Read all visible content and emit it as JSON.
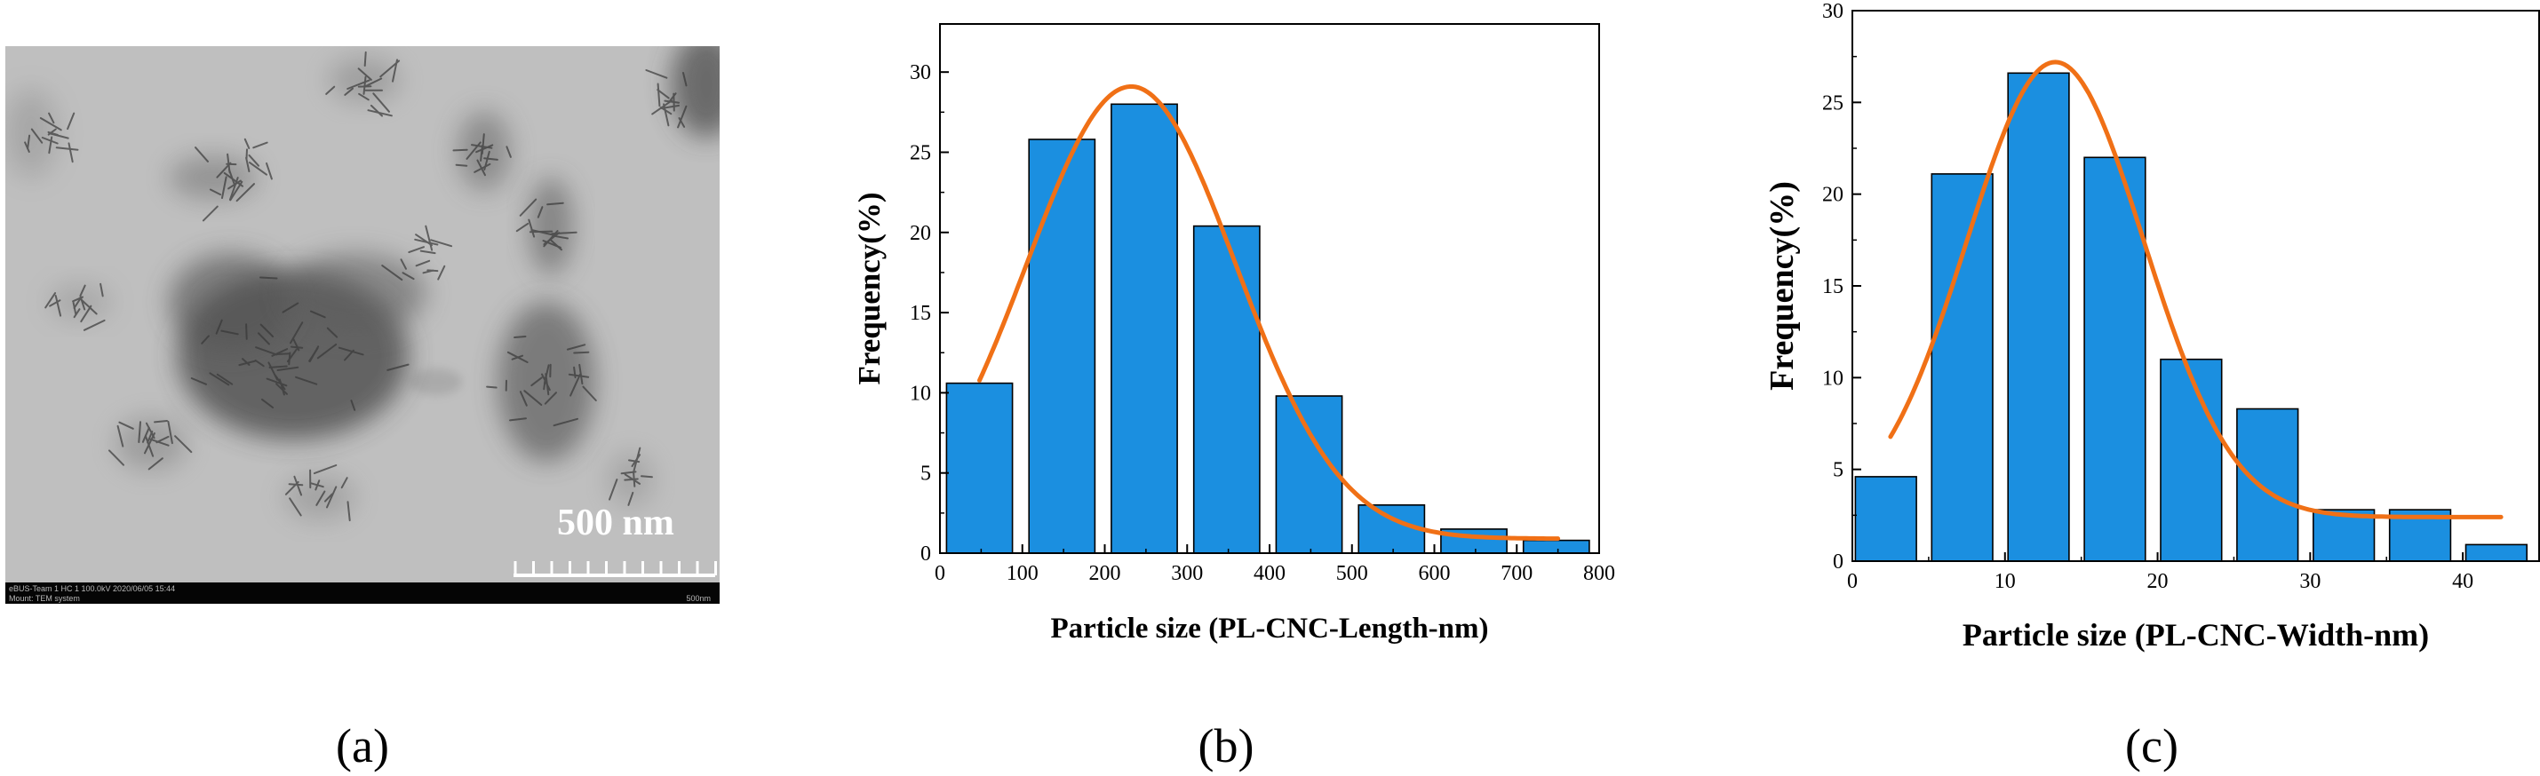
{
  "panels": {
    "a": "(a)",
    "b": "(b)",
    "c": "(c)"
  },
  "micrograph": {
    "scale_label": "500 nm",
    "footer_left_line1": "eBUS-Team 1 HC 1 100.0kV 2020/06/05 15:44",
    "footer_left_line2": "Mount: TEM system",
    "footer_right": "500nm"
  },
  "colors": {
    "bar": "#1b8fe0",
    "fit": "#f07016",
    "axis": "#000000"
  },
  "chart_data": [
    {
      "type": "bar",
      "xlabel": "Particle size (PL-CNC-Length-nm)",
      "ylabel": "Frequency(%)",
      "xlim": [
        0,
        800
      ],
      "ylim": [
        0,
        33
      ],
      "xticks": [
        0,
        100,
        200,
        300,
        400,
        500,
        600,
        700,
        800
      ],
      "yticks": [
        0,
        5,
        10,
        15,
        20,
        25,
        30
      ],
      "bins": [
        {
          "start": 8,
          "end": 88,
          "value": 10.6
        },
        {
          "start": 108,
          "end": 188,
          "value": 25.8
        },
        {
          "start": 208,
          "end": 288,
          "value": 28.0
        },
        {
          "start": 308,
          "end": 388,
          "value": 20.4
        },
        {
          "start": 408,
          "end": 488,
          "value": 9.8
        },
        {
          "start": 508,
          "end": 588,
          "value": 3.0
        },
        {
          "start": 608,
          "end": 688,
          "value": 1.5
        },
        {
          "start": 708,
          "end": 788,
          "value": 0.8
        }
      ],
      "fit": {
        "type": "gaussian",
        "offset": 0.9,
        "amplitude": 28.2,
        "center": 232,
        "sigma": 127,
        "x_range": [
          48,
          750
        ]
      }
    },
    {
      "type": "bar",
      "xlabel": "Particle size (PL-CNC-Width-nm)",
      "ylabel": "Frequency(%)",
      "xlim": [
        0,
        45
      ],
      "ylim": [
        0,
        30
      ],
      "xticks": [
        0,
        10,
        20,
        30,
        40
      ],
      "yticks": [
        0,
        5,
        10,
        15,
        20,
        25,
        30
      ],
      "bins": [
        {
          "start": 0.2,
          "end": 4.2,
          "value": 4.6
        },
        {
          "start": 5.2,
          "end": 9.2,
          "value": 21.1
        },
        {
          "start": 10.2,
          "end": 14.2,
          "value": 26.6
        },
        {
          "start": 15.2,
          "end": 19.2,
          "value": 22.0
        },
        {
          "start": 20.2,
          "end": 24.2,
          "value": 11.0
        },
        {
          "start": 25.2,
          "end": 29.2,
          "value": 8.3
        },
        {
          "start": 30.2,
          "end": 34.2,
          "value": 2.8
        },
        {
          "start": 35.2,
          "end": 39.2,
          "value": 2.8
        },
        {
          "start": 40.2,
          "end": 44.2,
          "value": 0.9
        }
      ],
      "fit": {
        "type": "gaussian",
        "offset": 2.4,
        "amplitude": 24.8,
        "center": 13.3,
        "sigma": 5.8,
        "x_range": [
          2.5,
          42.5
        ]
      }
    }
  ]
}
